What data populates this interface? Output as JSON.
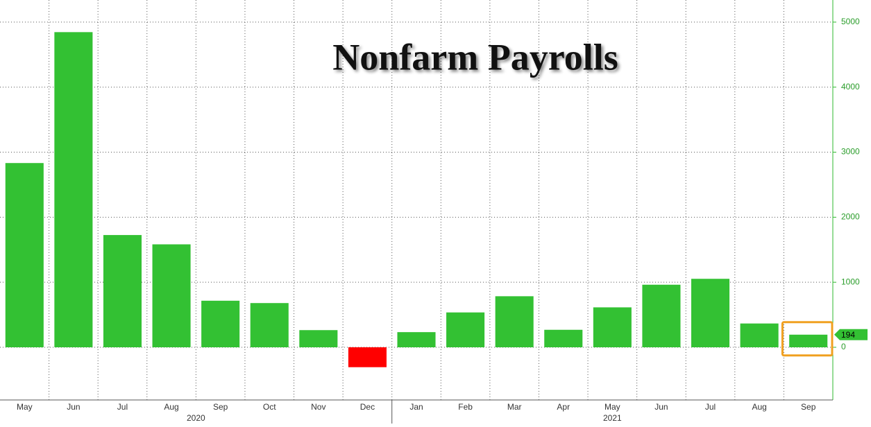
{
  "chart_data": {
    "type": "bar",
    "title": "Nonfarm Payrolls",
    "categories": [
      "May",
      "Jun",
      "Jul",
      "Aug",
      "Sep",
      "Oct",
      "Nov",
      "Dec",
      "Jan",
      "Feb",
      "Mar",
      "Apr",
      "May",
      "Jun",
      "Jul",
      "Aug",
      "Sep"
    ],
    "values": [
      2833,
      4846,
      1726,
      1583,
      716,
      680,
      264,
      -306,
      233,
      536,
      785,
      269,
      614,
      962,
      1053,
      366,
      194
    ],
    "year_labels": [
      "2020",
      "2021"
    ],
    "color": "#33c133",
    "negative_color": "#ff0000",
    "ylim": [
      -810,
      5340
    ],
    "yticks": [
      0,
      1000,
      2000,
      3000,
      4000,
      5000
    ],
    "grid": true
  }
}
